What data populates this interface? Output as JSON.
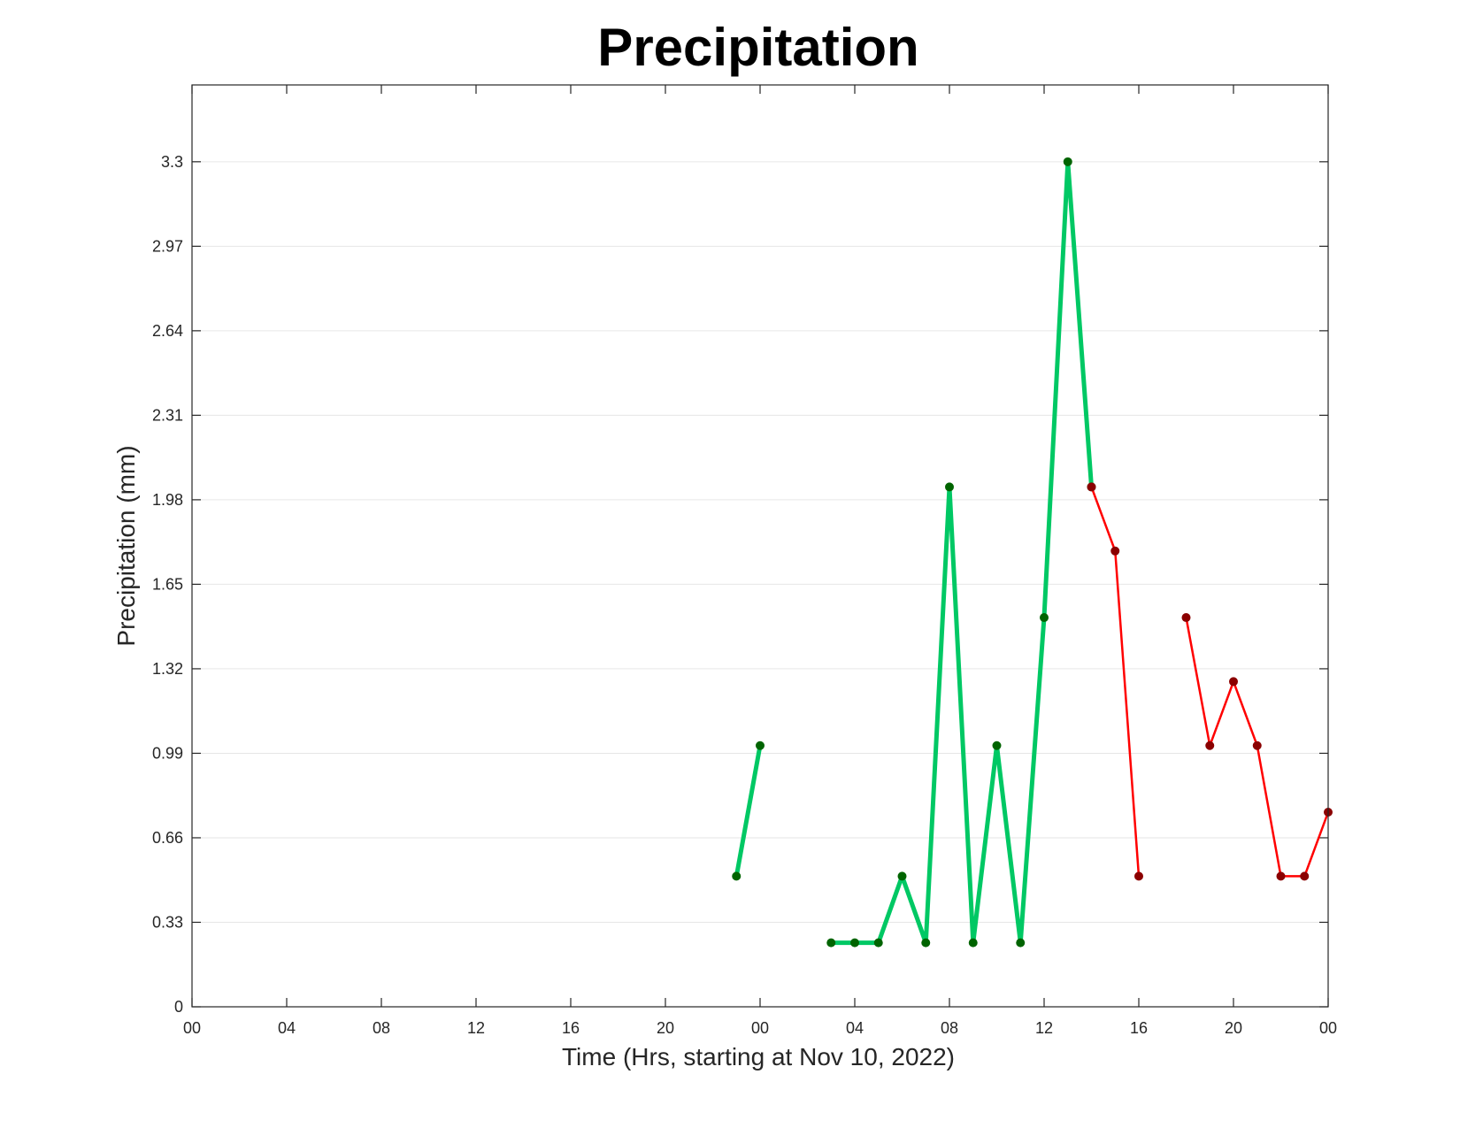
{
  "chart_data": {
    "type": "line",
    "title": "Precipitation",
    "xlabel": "Time (Hrs, starting at Nov 10, 2022)",
    "ylabel": "Precipitation (mm)",
    "x_unit": "hours",
    "xlim": [
      0,
      48
    ],
    "ylim": [
      0,
      3.6
    ],
    "x_ticks": [
      {
        "value": 0,
        "label": "00"
      },
      {
        "value": 4,
        "label": "04"
      },
      {
        "value": 8,
        "label": "08"
      },
      {
        "value": 12,
        "label": "12"
      },
      {
        "value": 16,
        "label": "16"
      },
      {
        "value": 20,
        "label": "20"
      },
      {
        "value": 24,
        "label": "00"
      },
      {
        "value": 28,
        "label": "04"
      },
      {
        "value": 32,
        "label": "08"
      },
      {
        "value": 36,
        "label": "12"
      },
      {
        "value": 40,
        "label": "16"
      },
      {
        "value": 44,
        "label": "20"
      },
      {
        "value": 48,
        "label": "00"
      }
    ],
    "y_ticks": [
      {
        "value": 0,
        "label": "0"
      },
      {
        "value": 0.33,
        "label": "0.33"
      },
      {
        "value": 0.66,
        "label": "0.66"
      },
      {
        "value": 0.99,
        "label": "0.99"
      },
      {
        "value": 1.32,
        "label": "1.32"
      },
      {
        "value": 1.65,
        "label": "1.65"
      },
      {
        "value": 1.98,
        "label": "1.98"
      },
      {
        "value": 2.31,
        "label": "2.31"
      },
      {
        "value": 2.64,
        "label": "2.64"
      },
      {
        "value": 2.97,
        "label": "2.97"
      },
      {
        "value": 3.3,
        "label": "3.3"
      }
    ],
    "grid": "horizontal",
    "series": [
      {
        "color": "#00c864",
        "marker_color": "#006400",
        "line_width": 5,
        "segments": [
          {
            "x": [
              23,
              24
            ],
            "y": [
              0.51,
              1.02
            ]
          },
          {
            "x": [
              27,
              28,
              29,
              30,
              31,
              32,
              33,
              34,
              35,
              36,
              37,
              38
            ],
            "y": [
              0.25,
              0.25,
              0.25,
              0.51,
              0.25,
              2.03,
              0.25,
              1.02,
              0.25,
              1.52,
              3.3,
              2.03
            ]
          }
        ]
      },
      {
        "color": "#ff0000",
        "marker_color": "#8b0000",
        "line_width": 2.5,
        "segments": [
          {
            "x": [
              38,
              39,
              40
            ],
            "y": [
              2.03,
              1.78,
              0.51
            ]
          },
          {
            "x": [
              42,
              43,
              44,
              45,
              46,
              47,
              48
            ],
            "y": [
              1.52,
              1.02,
              1.27,
              1.02,
              0.51,
              0.51,
              0.76
            ]
          }
        ]
      }
    ]
  }
}
